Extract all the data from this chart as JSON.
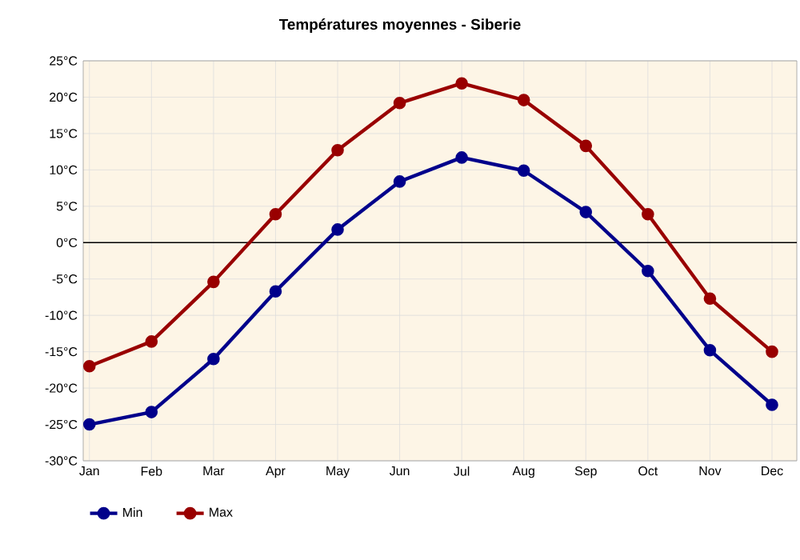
{
  "chart_data": {
    "type": "line",
    "title": "Températures moyennes - Siberie",
    "categories": [
      "Jan",
      "Feb",
      "Mar",
      "Apr",
      "May",
      "Jun",
      "Jul",
      "Aug",
      "Sep",
      "Oct",
      "Nov",
      "Dec"
    ],
    "series": [
      {
        "name": "Min",
        "color": "#00008b",
        "values": [
          -25,
          -23.3,
          -16,
          -6.7,
          1.8,
          8.4,
          11.7,
          9.9,
          4.2,
          -3.9,
          -14.8,
          -22.3
        ]
      },
      {
        "name": "Max",
        "color": "#990000",
        "values": [
          -17,
          -13.6,
          -5.4,
          3.9,
          12.7,
          19.2,
          21.9,
          19.6,
          13.3,
          3.9,
          -7.7,
          -15
        ]
      }
    ],
    "ylim": [
      -30,
      25
    ],
    "yticks": [
      {
        "value": -30,
        "label": "-30°C"
      },
      {
        "value": -25,
        "label": "-25°C"
      },
      {
        "value": -20,
        "label": "-20°C"
      },
      {
        "value": -15,
        "label": "-15°C"
      },
      {
        "value": -10,
        "label": "-10°C"
      },
      {
        "value": -5,
        "label": "-5°C"
      },
      {
        "value": 0,
        "label": "0°C"
      },
      {
        "value": 5,
        "label": "5°C"
      },
      {
        "value": 10,
        "label": "10°C"
      },
      {
        "value": 15,
        "label": "15°C"
      },
      {
        "value": 20,
        "label": "20°C"
      },
      {
        "value": 25,
        "label": "25°C"
      }
    ],
    "ref_lines": [
      {
        "axis": "y",
        "value": 0,
        "color": "#000000"
      }
    ],
    "grid": true,
    "legend": "bottom left",
    "marker": "circle",
    "line_style": "solid"
  }
}
